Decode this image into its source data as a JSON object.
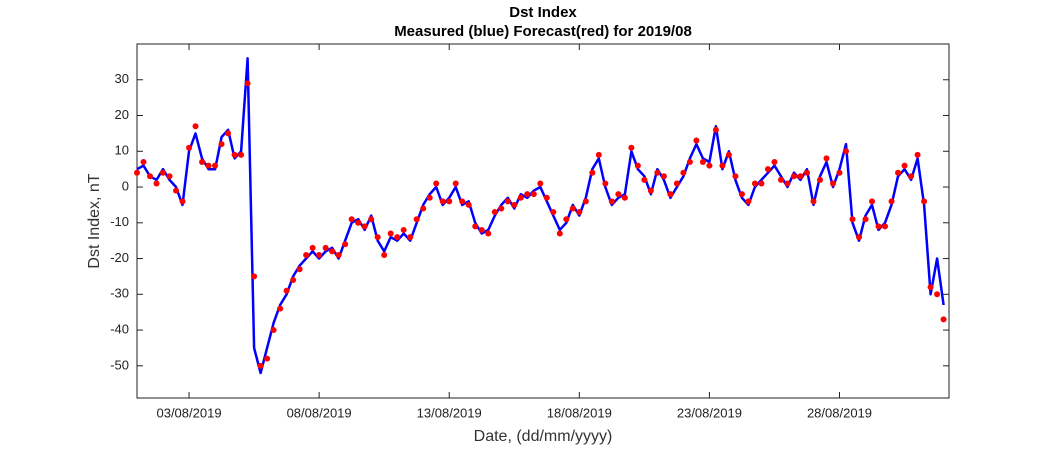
{
  "chart_data": {
    "type": "line",
    "title": "Dst Index",
    "subtitle": "Measured (blue) Forecast(red) for 2019/08",
    "x_label": "Date, (dd/mm/yyyy)",
    "y_label": "Dst Index, nT",
    "x": [
      "2019-08-01T00:00",
      "2019-08-01T06:00",
      "2019-08-01T12:00",
      "2019-08-01T18:00",
      "2019-08-02T00:00",
      "2019-08-02T06:00",
      "2019-08-02T12:00",
      "2019-08-02T18:00",
      "2019-08-03T00:00",
      "2019-08-03T06:00",
      "2019-08-03T12:00",
      "2019-08-03T18:00",
      "2019-08-04T00:00",
      "2019-08-04T06:00",
      "2019-08-04T12:00",
      "2019-08-04T18:00",
      "2019-08-05T00:00",
      "2019-08-05T06:00",
      "2019-08-05T12:00",
      "2019-08-05T18:00",
      "2019-08-06T00:00",
      "2019-08-06T06:00",
      "2019-08-06T12:00",
      "2019-08-06T18:00",
      "2019-08-07T00:00",
      "2019-08-07T06:00",
      "2019-08-07T12:00",
      "2019-08-07T18:00",
      "2019-08-08T00:00",
      "2019-08-08T06:00",
      "2019-08-08T12:00",
      "2019-08-08T18:00",
      "2019-08-09T00:00",
      "2019-08-09T06:00",
      "2019-08-09T12:00",
      "2019-08-09T18:00",
      "2019-08-10T00:00",
      "2019-08-10T06:00",
      "2019-08-10T12:00",
      "2019-08-10T18:00",
      "2019-08-11T00:00",
      "2019-08-11T06:00",
      "2019-08-11T12:00",
      "2019-08-11T18:00",
      "2019-08-12T00:00",
      "2019-08-12T06:00",
      "2019-08-12T12:00",
      "2019-08-12T18:00",
      "2019-08-13T00:00",
      "2019-08-13T06:00",
      "2019-08-13T12:00",
      "2019-08-13T18:00",
      "2019-08-14T00:00",
      "2019-08-14T06:00",
      "2019-08-14T12:00",
      "2019-08-14T18:00",
      "2019-08-15T00:00",
      "2019-08-15T06:00",
      "2019-08-15T12:00",
      "2019-08-15T18:00",
      "2019-08-16T00:00",
      "2019-08-16T06:00",
      "2019-08-16T12:00",
      "2019-08-16T18:00",
      "2019-08-17T00:00",
      "2019-08-17T06:00",
      "2019-08-17T12:00",
      "2019-08-17T18:00",
      "2019-08-18T00:00",
      "2019-08-18T06:00",
      "2019-08-18T12:00",
      "2019-08-18T18:00",
      "2019-08-19T00:00",
      "2019-08-19T06:00",
      "2019-08-19T12:00",
      "2019-08-19T18:00",
      "2019-08-20T00:00",
      "2019-08-20T06:00",
      "2019-08-20T12:00",
      "2019-08-20T18:00",
      "2019-08-21T00:00",
      "2019-08-21T06:00",
      "2019-08-21T12:00",
      "2019-08-21T18:00",
      "2019-08-22T00:00",
      "2019-08-22T06:00",
      "2019-08-22T12:00",
      "2019-08-22T18:00",
      "2019-08-23T00:00",
      "2019-08-23T06:00",
      "2019-08-23T12:00",
      "2019-08-23T18:00",
      "2019-08-24T00:00",
      "2019-08-24T06:00",
      "2019-08-24T12:00",
      "2019-08-24T18:00",
      "2019-08-25T00:00",
      "2019-08-25T06:00",
      "2019-08-25T12:00",
      "2019-08-25T18:00",
      "2019-08-26T00:00",
      "2019-08-26T06:00",
      "2019-08-26T12:00",
      "2019-08-26T18:00",
      "2019-08-27T00:00",
      "2019-08-27T06:00",
      "2019-08-27T12:00",
      "2019-08-27T18:00",
      "2019-08-28T00:00",
      "2019-08-28T06:00",
      "2019-08-28T12:00",
      "2019-08-28T18:00",
      "2019-08-29T00:00",
      "2019-08-29T06:00",
      "2019-08-29T12:00",
      "2019-08-29T18:00",
      "2019-08-30T00:00",
      "2019-08-30T06:00",
      "2019-08-30T12:00",
      "2019-08-30T18:00",
      "2019-08-31T00:00",
      "2019-08-31T06:00",
      "2019-08-31T12:00",
      "2019-08-31T18:00",
      "2019-09-01T00:00"
    ],
    "series": [
      {
        "name": "Measured",
        "color": "#0000ff",
        "mode": "line",
        "values": [
          5,
          6,
          3,
          2,
          5,
          2,
          0,
          -5,
          10,
          15,
          8,
          5,
          5,
          14,
          16,
          8,
          10,
          36,
          -45,
          -52,
          -45,
          -38,
          -33,
          -30,
          -25,
          -22,
          -20,
          -18,
          -20,
          -18,
          -17,
          -20,
          -15,
          -10,
          -9,
          -12,
          -8,
          -15,
          -18,
          -14,
          -15,
          -13,
          -15,
          -10,
          -5,
          -2,
          0,
          -5,
          -3,
          0,
          -5,
          -4,
          -10,
          -13,
          -12,
          -8,
          -5,
          -3,
          -6,
          -2,
          -3,
          -1,
          0,
          -4,
          -8,
          -12,
          -10,
          -5,
          -8,
          -3,
          5,
          8,
          0,
          -5,
          -3,
          -2,
          10,
          5,
          3,
          -2,
          5,
          2,
          -3,
          0,
          3,
          8,
          12,
          8,
          7,
          17,
          5,
          10,
          2,
          -3,
          -5,
          0,
          2,
          4,
          6,
          3,
          0,
          4,
          2,
          5,
          -5,
          3,
          7,
          0,
          5,
          12,
          -10,
          -15,
          -8,
          -5,
          -12,
          -10,
          -5,
          3,
          5,
          2,
          8,
          -5,
          -30,
          -20,
          -33
        ]
      },
      {
        "name": "Forecast",
        "color": "#ff0000",
        "mode": "markers",
        "values": [
          4,
          7,
          3,
          1,
          4,
          3,
          -1,
          -4,
          11,
          17,
          7,
          6,
          6,
          12,
          15,
          9,
          9,
          29,
          -25,
          -50,
          -48,
          -40,
          -34,
          -29,
          -26,
          -23,
          -19,
          -17,
          -19,
          -17,
          -18,
          -19,
          -16,
          -9,
          -10,
          -11,
          -9,
          -14,
          -19,
          -13,
          -14,
          -12,
          -14,
          -9,
          -6,
          -3,
          1,
          -4,
          -4,
          1,
          -4,
          -5,
          -11,
          -12,
          -13,
          -7,
          -6,
          -4,
          -5,
          -3,
          -2,
          -2,
          1,
          -3,
          -7,
          -13,
          -9,
          -6,
          -7,
          -4,
          4,
          9,
          1,
          -4,
          -2,
          -3,
          11,
          6,
          2,
          -1,
          4,
          3,
          -2,
          1,
          4,
          7,
          13,
          7,
          6,
          16,
          6,
          9,
          3,
          -2,
          -4,
          1,
          1,
          5,
          7,
          2,
          1,
          3,
          3,
          4,
          -4,
          2,
          8,
          1,
          4,
          10,
          -9,
          -14,
          -9,
          -4,
          -11,
          -11,
          -4,
          4,
          6,
          3,
          9,
          -4,
          -28,
          -30,
          -37
        ]
      }
    ],
    "xlim": [
      "2019-08-01T00:00",
      "2019-09-01T05:00"
    ],
    "xticks": [
      {
        "value": "2019-08-03T00:00",
        "label": "03/08/2019"
      },
      {
        "value": "2019-08-08T00:00",
        "label": "08/08/2019"
      },
      {
        "value": "2019-08-13T00:00",
        "label": "13/08/2019"
      },
      {
        "value": "2019-08-18T00:00",
        "label": "18/08/2019"
      },
      {
        "value": "2019-08-23T00:00",
        "label": "23/08/2019"
      },
      {
        "value": "2019-08-28T00:00",
        "label": "28/08/2019"
      }
    ],
    "ylim": [
      -59,
      40
    ],
    "yticks": [
      -50,
      -40,
      -30,
      -20,
      -10,
      0,
      10,
      20,
      30
    ],
    "grid": false
  }
}
